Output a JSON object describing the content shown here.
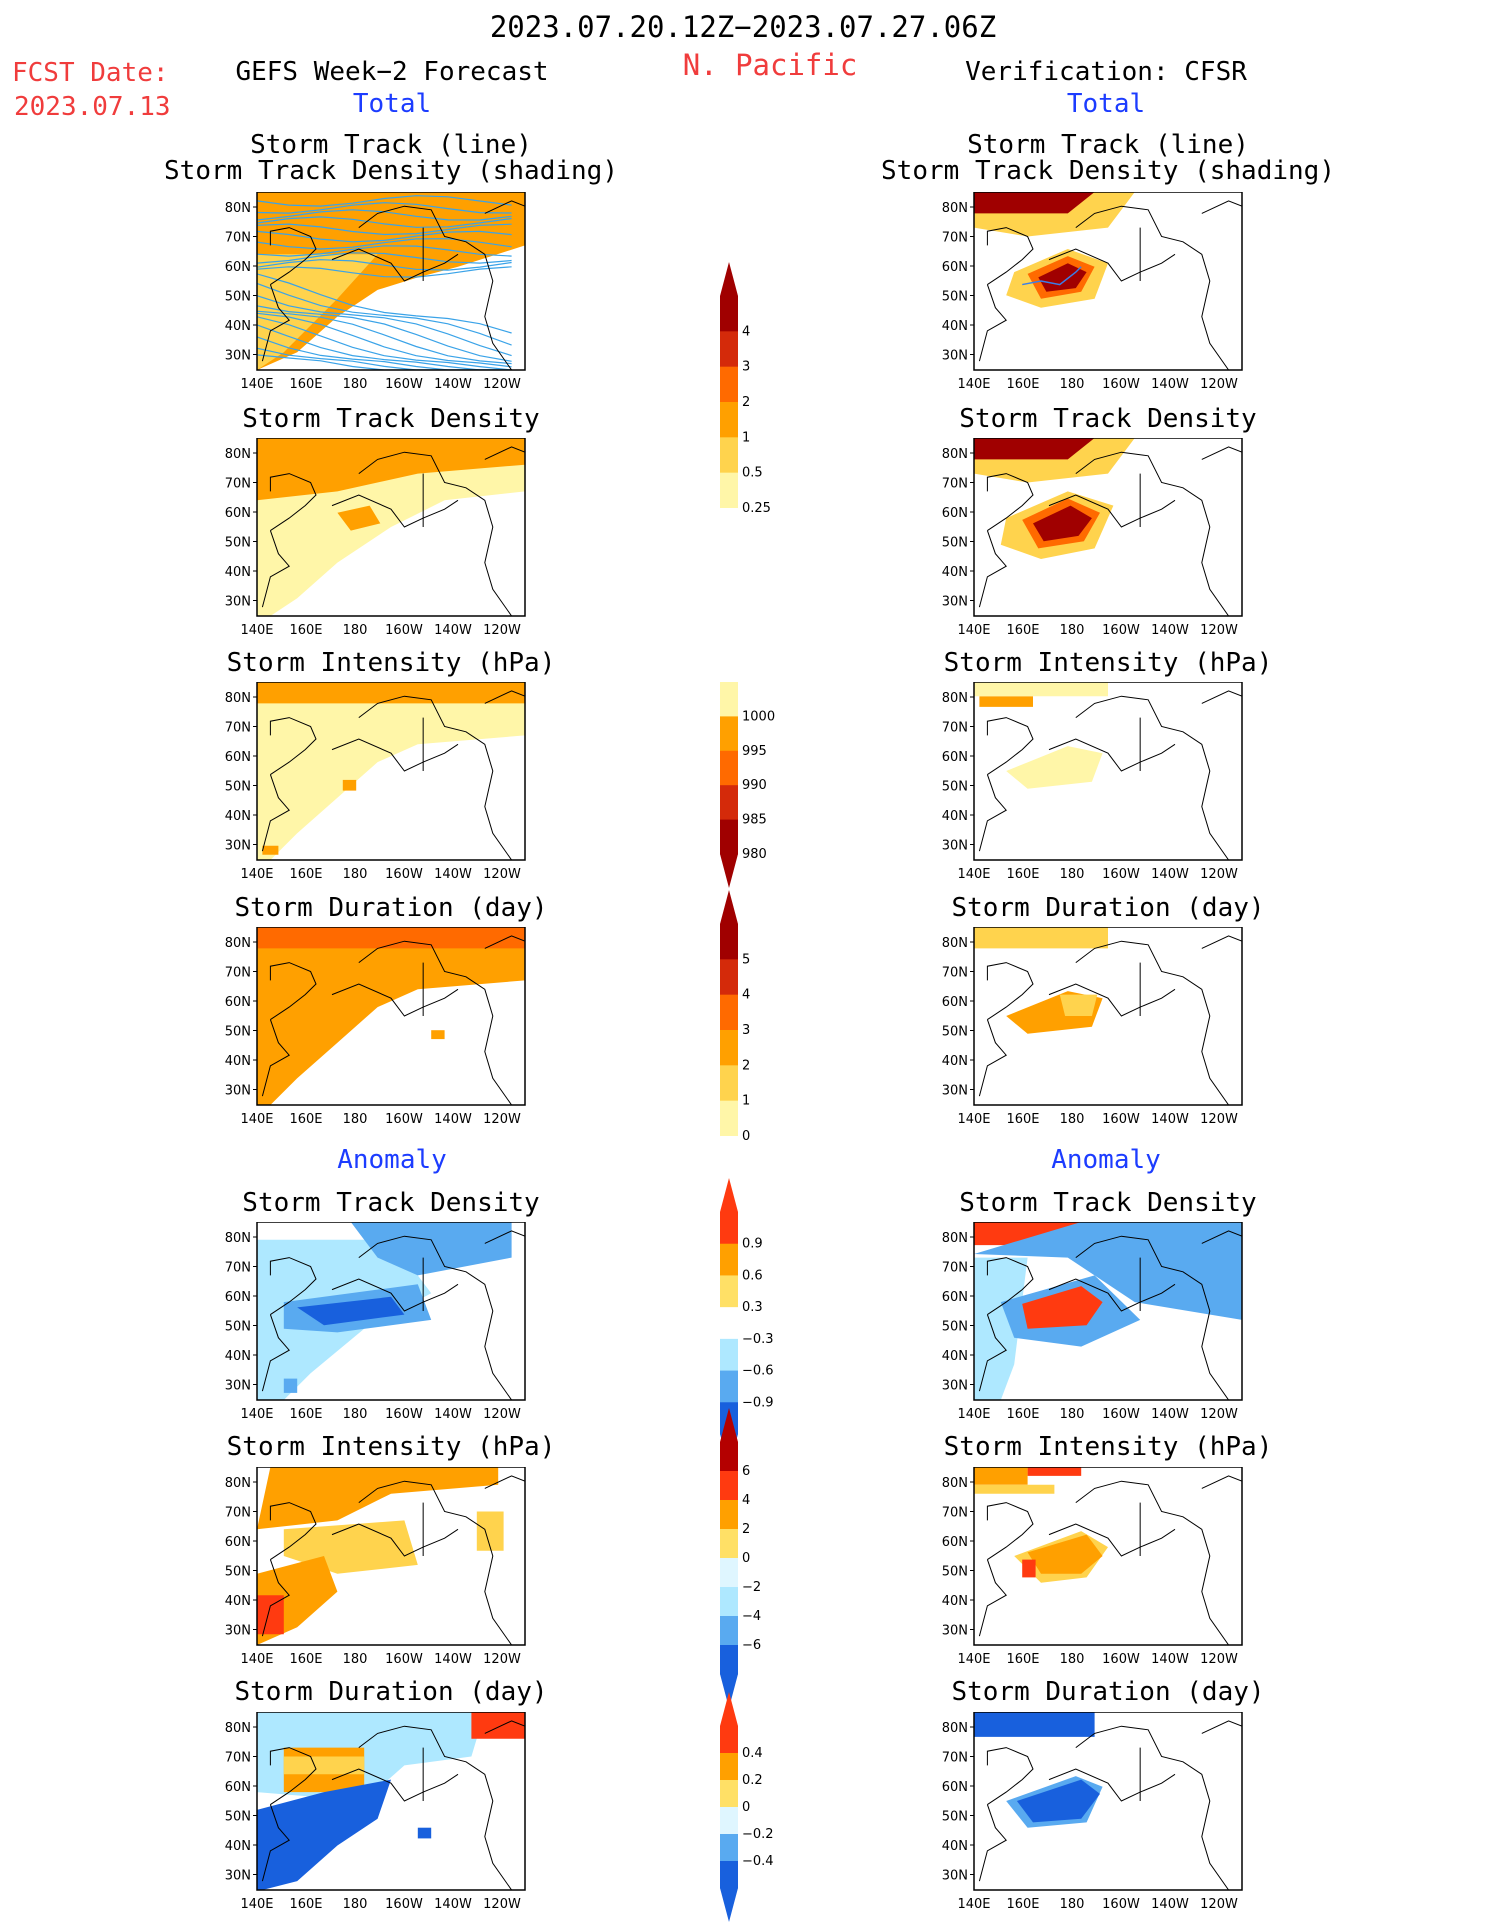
{
  "header": {
    "date_range": "2023.07.20.12Z−2023.07.27.06Z",
    "region": "N. Pacific",
    "fcst_label": "FCST Date:",
    "fcst_date": "2023.07.13",
    "left_title": "GEFS Week−2 Forecast",
    "right_title": "Verification: CFSR",
    "total": "Total",
    "anomaly": "Anomaly"
  },
  "titles": {
    "track_line": "Storm Track (line)",
    "track_shading": "Storm Track Density (shading)",
    "density": "Storm Track Density",
    "intensity": "Storm Intensity (hPa)",
    "duration": "Storm Duration (day)"
  },
  "axes": {
    "lat_ticks": [
      "80N",
      "70N",
      "60N",
      "50N",
      "40N",
      "30N"
    ],
    "lon_ticks": [
      "140E",
      "160E",
      "180",
      "160W",
      "140W",
      "120W"
    ]
  },
  "colorbars": [
    {
      "id": "total-density",
      "labels": [
        "4",
        "3",
        "2",
        "1",
        "0.5",
        "0.25"
      ],
      "colors": [
        "#a00000",
        "#d42a0a",
        "#ff6a00",
        "#ffa000",
        "#ffd34d",
        "#fff6a8"
      ]
    },
    {
      "id": "total-intensity",
      "labels": [
        "1000",
        "995",
        "990",
        "985",
        "980"
      ],
      "colors": [
        "#fff6a8",
        "#ffa000",
        "#ff6a00",
        "#d42a0a",
        "#a00000"
      ]
    },
    {
      "id": "total-duration",
      "labels": [
        "5",
        "4",
        "3",
        "2",
        "1",
        "0"
      ],
      "colors": [
        "#a00000",
        "#d42a0a",
        "#ff6a00",
        "#ffa000",
        "#ffd34d",
        "#fff6a8"
      ]
    },
    {
      "id": "anom-density",
      "labels": [
        "0.9",
        "0.6",
        "0.3",
        "−0.3",
        "−0.6",
        "−0.9"
      ],
      "colors": [
        "#ff3a10",
        "#ffa000",
        "#ffe066",
        "#ffffff",
        "#aee8ff",
        "#59aaf0",
        "#1860dd"
      ]
    },
    {
      "id": "anom-intensity",
      "labels": [
        "6",
        "4",
        "2",
        "0",
        "−2",
        "−4",
        "−6"
      ],
      "colors": [
        "#b40000",
        "#ff3a10",
        "#ffa000",
        "#ffe066",
        "#dff6ff",
        "#aee8ff",
        "#59aaf0",
        "#1860dd"
      ]
    },
    {
      "id": "anom-duration",
      "labels": [
        "0.4",
        "0.2",
        "0",
        "−0.2",
        "−0.4"
      ],
      "colors": [
        "#ff3a10",
        "#ffa000",
        "#ffe066",
        "#dff6ff",
        "#59aaf0",
        "#1860dd"
      ]
    }
  ],
  "chart_data": [
    {
      "type": "heatmap",
      "panel": "forecast-total-track",
      "title": "Storm Track (line) / Storm Track Density (shading)",
      "legend": "0.25–4"
    },
    {
      "type": "heatmap",
      "panel": "verification-total-track",
      "title": "Storm Track (line) / Storm Track Density (shading)",
      "legend": "0.25–4"
    },
    {
      "type": "heatmap",
      "panel": "forecast-total-density",
      "title": "Storm Track Density"
    },
    {
      "type": "heatmap",
      "panel": "verification-total-density",
      "title": "Storm Track Density"
    },
    {
      "type": "heatmap",
      "panel": "forecast-total-intensity",
      "title": "Storm Intensity (hPa)"
    },
    {
      "type": "heatmap",
      "panel": "verification-total-intensity",
      "title": "Storm Intensity (hPa)"
    },
    {
      "type": "heatmap",
      "panel": "forecast-total-duration",
      "title": "Storm Duration (day)"
    },
    {
      "type": "heatmap",
      "panel": "verification-total-duration",
      "title": "Storm Duration (day)"
    },
    {
      "type": "heatmap",
      "panel": "forecast-anomaly-density",
      "title": "Storm Track Density"
    },
    {
      "type": "heatmap",
      "panel": "verification-anomaly-density",
      "title": "Storm Track Density"
    },
    {
      "type": "heatmap",
      "panel": "forecast-anomaly-intensity",
      "title": "Storm Intensity (hPa)"
    },
    {
      "type": "heatmap",
      "panel": "verification-anomaly-intensity",
      "title": "Storm Intensity (hPa)"
    },
    {
      "type": "heatmap",
      "panel": "forecast-anomaly-duration",
      "title": "Storm Duration (day)"
    },
    {
      "type": "heatmap",
      "panel": "verification-anomaly-duration",
      "title": "Storm Duration (day)"
    }
  ]
}
